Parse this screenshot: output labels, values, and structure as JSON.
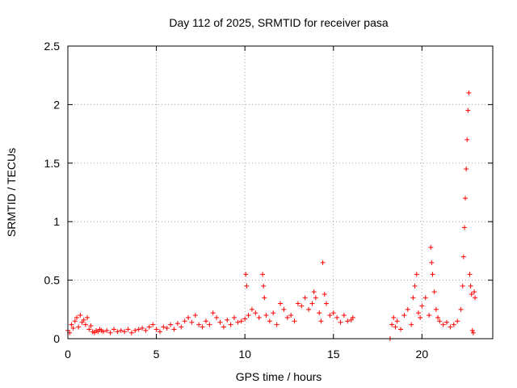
{
  "chart_data": {
    "type": "scatter",
    "title": "Day 112 of 2025, SRMTID for receiver pasa",
    "xlabel": "GPS time / hours",
    "ylabel": "SRMTID / TECUs",
    "xlim": [
      0,
      24
    ],
    "ylim": [
      0,
      2.5
    ],
    "x_ticks": [
      0,
      5,
      10,
      15,
      20
    ],
    "x_tick_labels": [
      "0",
      "5",
      "10",
      "15",
      "20"
    ],
    "y_ticks": [
      0,
      0.5,
      1,
      1.5,
      2,
      2.5
    ],
    "y_tick_labels": [
      "0",
      "0.5",
      "1",
      "1.5",
      "2",
      "2.5"
    ],
    "grid": true,
    "marker": "plus",
    "color": "#ff0000",
    "series": [
      {
        "name": "pasa",
        "x": [
          0.0,
          0.1,
          0.2,
          0.3,
          0.4,
          0.5,
          0.6,
          0.7,
          0.8,
          0.9,
          1.0,
          1.1,
          1.2,
          1.3,
          1.4,
          1.5,
          1.6,
          1.7,
          1.8,
          1.9,
          2.0,
          2.2,
          2.4,
          2.6,
          2.8,
          3.0,
          3.2,
          3.4,
          3.6,
          3.8,
          4.0,
          4.2,
          4.4,
          4.6,
          4.8,
          5.0,
          5.2,
          5.4,
          5.6,
          5.8,
          6.0,
          6.2,
          6.4,
          6.6,
          6.8,
          7.0,
          7.2,
          7.4,
          7.6,
          7.8,
          8.0,
          8.2,
          8.4,
          8.6,
          8.8,
          9.0,
          9.2,
          9.4,
          9.6,
          9.8,
          10.0,
          10.05,
          10.1,
          10.2,
          10.4,
          10.6,
          10.8,
          11.0,
          11.05,
          11.1,
          11.2,
          11.4,
          11.6,
          11.8,
          12.0,
          12.2,
          12.4,
          12.6,
          12.8,
          13.0,
          13.2,
          13.4,
          13.6,
          13.8,
          13.9,
          14.0,
          14.2,
          14.3,
          14.4,
          14.5,
          14.6,
          14.8,
          15.0,
          15.2,
          15.4,
          15.6,
          15.8,
          16.0,
          16.1,
          18.2,
          18.3,
          18.4,
          18.5,
          18.6,
          18.8,
          19.0,
          19.2,
          19.4,
          19.5,
          19.6,
          19.7,
          19.8,
          19.9,
          20.0,
          20.2,
          20.4,
          20.5,
          20.55,
          20.6,
          20.7,
          20.8,
          20.9,
          21.0,
          21.2,
          21.4,
          21.6,
          21.8,
          22.0,
          22.2,
          22.3,
          22.35,
          22.4,
          22.45,
          22.5,
          22.55,
          22.6,
          22.65,
          22.7,
          22.75,
          22.8,
          22.85,
          22.9,
          22.95,
          23.0
        ],
        "y": [
          0.07,
          0.05,
          0.12,
          0.09,
          0.15,
          0.18,
          0.1,
          0.2,
          0.14,
          0.16,
          0.12,
          0.18,
          0.08,
          0.11,
          0.06,
          0.05,
          0.07,
          0.06,
          0.08,
          0.07,
          0.06,
          0.07,
          0.05,
          0.08,
          0.06,
          0.07,
          0.06,
          0.08,
          0.05,
          0.07,
          0.08,
          0.09,
          0.07,
          0.1,
          0.12,
          0.08,
          0.06,
          0.1,
          0.09,
          0.12,
          0.08,
          0.13,
          0.1,
          0.15,
          0.18,
          0.14,
          0.2,
          0.12,
          0.1,
          0.15,
          0.12,
          0.22,
          0.18,
          0.14,
          0.1,
          0.16,
          0.12,
          0.18,
          0.14,
          0.15,
          0.17,
          0.55,
          0.45,
          0.2,
          0.25,
          0.22,
          0.18,
          0.55,
          0.45,
          0.35,
          0.2,
          0.15,
          0.22,
          0.12,
          0.3,
          0.25,
          0.18,
          0.2,
          0.15,
          0.3,
          0.28,
          0.35,
          0.25,
          0.3,
          0.4,
          0.35,
          0.22,
          0.15,
          0.65,
          0.38,
          0.3,
          0.2,
          0.22,
          0.18,
          0.14,
          0.2,
          0.15,
          0.16,
          0.18,
          0.0,
          0.12,
          0.18,
          0.1,
          0.15,
          0.08,
          0.2,
          0.25,
          0.12,
          0.35,
          0.45,
          0.55,
          0.22,
          0.18,
          0.28,
          0.35,
          0.2,
          0.78,
          0.65,
          0.55,
          0.4,
          0.25,
          0.18,
          0.15,
          0.12,
          0.14,
          0.1,
          0.12,
          0.15,
          0.25,
          0.45,
          0.7,
          0.95,
          1.2,
          1.45,
          1.7,
          1.95,
          2.1,
          0.55,
          0.45,
          0.38,
          0.07,
          0.05,
          0.4,
          0.35
        ]
      }
    ]
  }
}
